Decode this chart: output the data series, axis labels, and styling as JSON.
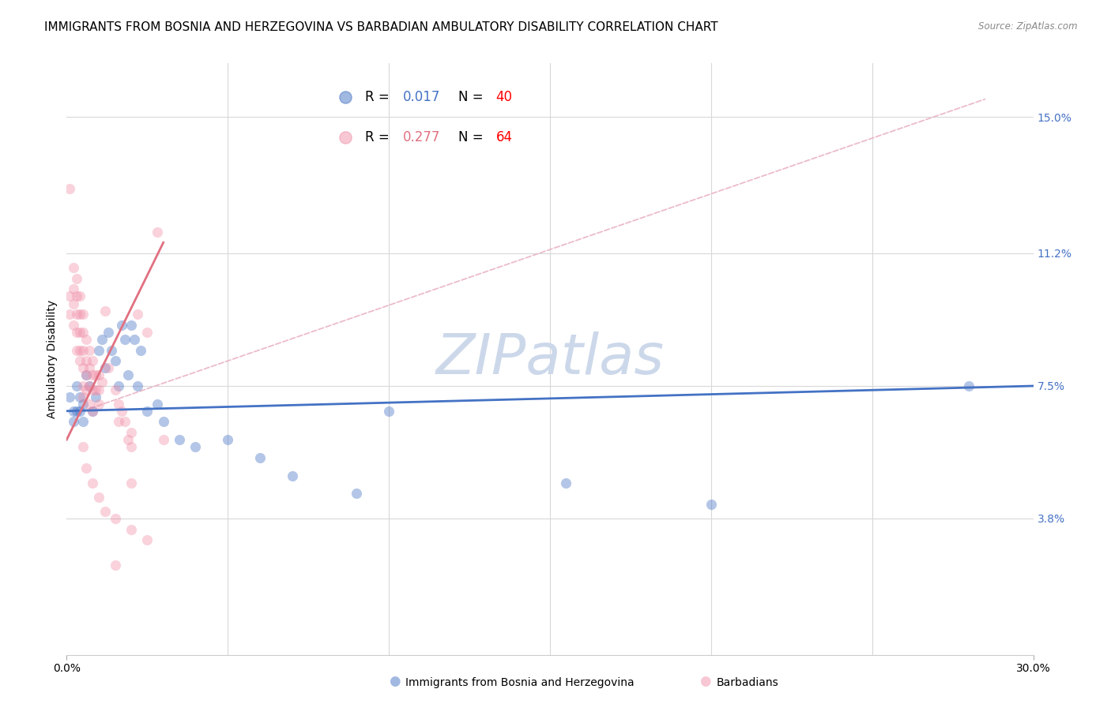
{
  "title": "IMMIGRANTS FROM BOSNIA AND HERZEGOVINA VS BARBADIAN AMBULATORY DISABILITY CORRELATION CHART",
  "source": "Source: ZipAtlas.com",
  "ylabel": "Ambulatory Disability",
  "xlim": [
    0.0,
    0.3
  ],
  "ylim": [
    0.0,
    0.165
  ],
  "xtick_labels": [
    "0.0%",
    "30.0%"
  ],
  "xtick_vals": [
    0.0,
    0.3
  ],
  "right_ytick_labels": [
    "3.8%",
    "7.5%",
    "11.2%",
    "15.0%"
  ],
  "right_ytick_vals": [
    0.038,
    0.075,
    0.112,
    0.15
  ],
  "watermark": "ZIPatlas",
  "blue_scatter": [
    [
      0.001,
      0.072
    ],
    [
      0.002,
      0.068
    ],
    [
      0.002,
      0.065
    ],
    [
      0.003,
      0.075
    ],
    [
      0.003,
      0.068
    ],
    [
      0.004,
      0.072
    ],
    [
      0.004,
      0.068
    ],
    [
      0.005,
      0.07
    ],
    [
      0.005,
      0.065
    ],
    [
      0.006,
      0.078
    ],
    [
      0.007,
      0.075
    ],
    [
      0.008,
      0.068
    ],
    [
      0.009,
      0.072
    ],
    [
      0.01,
      0.085
    ],
    [
      0.011,
      0.088
    ],
    [
      0.012,
      0.08
    ],
    [
      0.013,
      0.09
    ],
    [
      0.014,
      0.085
    ],
    [
      0.015,
      0.082
    ],
    [
      0.016,
      0.075
    ],
    [
      0.017,
      0.092
    ],
    [
      0.018,
      0.088
    ],
    [
      0.019,
      0.078
    ],
    [
      0.02,
      0.092
    ],
    [
      0.021,
      0.088
    ],
    [
      0.022,
      0.075
    ],
    [
      0.023,
      0.085
    ],
    [
      0.025,
      0.068
    ],
    [
      0.028,
      0.07
    ],
    [
      0.03,
      0.065
    ],
    [
      0.035,
      0.06
    ],
    [
      0.04,
      0.058
    ],
    [
      0.05,
      0.06
    ],
    [
      0.06,
      0.055
    ],
    [
      0.07,
      0.05
    ],
    [
      0.09,
      0.045
    ],
    [
      0.1,
      0.068
    ],
    [
      0.155,
      0.048
    ],
    [
      0.2,
      0.042
    ],
    [
      0.28,
      0.075
    ]
  ],
  "pink_scatter": [
    [
      0.001,
      0.13
    ],
    [
      0.001,
      0.1
    ],
    [
      0.001,
      0.095
    ],
    [
      0.002,
      0.108
    ],
    [
      0.002,
      0.102
    ],
    [
      0.002,
      0.098
    ],
    [
      0.002,
      0.092
    ],
    [
      0.003,
      0.105
    ],
    [
      0.003,
      0.1
    ],
    [
      0.003,
      0.095
    ],
    [
      0.003,
      0.09
    ],
    [
      0.003,
      0.085
    ],
    [
      0.004,
      0.1
    ],
    [
      0.004,
      0.095
    ],
    [
      0.004,
      0.09
    ],
    [
      0.004,
      0.085
    ],
    [
      0.004,
      0.082
    ],
    [
      0.005,
      0.095
    ],
    [
      0.005,
      0.09
    ],
    [
      0.005,
      0.085
    ],
    [
      0.005,
      0.08
    ],
    [
      0.005,
      0.075
    ],
    [
      0.005,
      0.072
    ],
    [
      0.006,
      0.088
    ],
    [
      0.006,
      0.082
    ],
    [
      0.006,
      0.078
    ],
    [
      0.006,
      0.074
    ],
    [
      0.007,
      0.085
    ],
    [
      0.007,
      0.08
    ],
    [
      0.007,
      0.075
    ],
    [
      0.007,
      0.07
    ],
    [
      0.008,
      0.082
    ],
    [
      0.008,
      0.078
    ],
    [
      0.008,
      0.074
    ],
    [
      0.008,
      0.068
    ],
    [
      0.009,
      0.078
    ],
    [
      0.009,
      0.074
    ],
    [
      0.01,
      0.078
    ],
    [
      0.01,
      0.074
    ],
    [
      0.01,
      0.07
    ],
    [
      0.011,
      0.076
    ],
    [
      0.012,
      0.096
    ],
    [
      0.013,
      0.08
    ],
    [
      0.015,
      0.074
    ],
    [
      0.016,
      0.07
    ],
    [
      0.016,
      0.065
    ],
    [
      0.017,
      0.068
    ],
    [
      0.018,
      0.065
    ],
    [
      0.019,
      0.06
    ],
    [
      0.02,
      0.062
    ],
    [
      0.02,
      0.058
    ],
    [
      0.022,
      0.095
    ],
    [
      0.025,
      0.09
    ],
    [
      0.005,
      0.058
    ],
    [
      0.006,
      0.052
    ],
    [
      0.008,
      0.048
    ],
    [
      0.01,
      0.044
    ],
    [
      0.012,
      0.04
    ],
    [
      0.015,
      0.038
    ],
    [
      0.02,
      0.035
    ],
    [
      0.025,
      0.032
    ],
    [
      0.015,
      0.025
    ],
    [
      0.02,
      0.048
    ],
    [
      0.028,
      0.118
    ],
    [
      0.03,
      0.06
    ]
  ],
  "blue_line_color": "#4472c4",
  "pink_line_color": "#e07080",
  "pink_scatter_color": "#f090a8",
  "diagonal_line_color": "#e8b0c0",
  "background_color": "#ffffff",
  "grid_color": "#d8d8d8",
  "title_fontsize": 11,
  "axis_label_fontsize": 10,
  "tick_fontsize": 10,
  "legend_fontsize": 12,
  "watermark_color": "#ccd8ea",
  "watermark_fontsize": 52
}
